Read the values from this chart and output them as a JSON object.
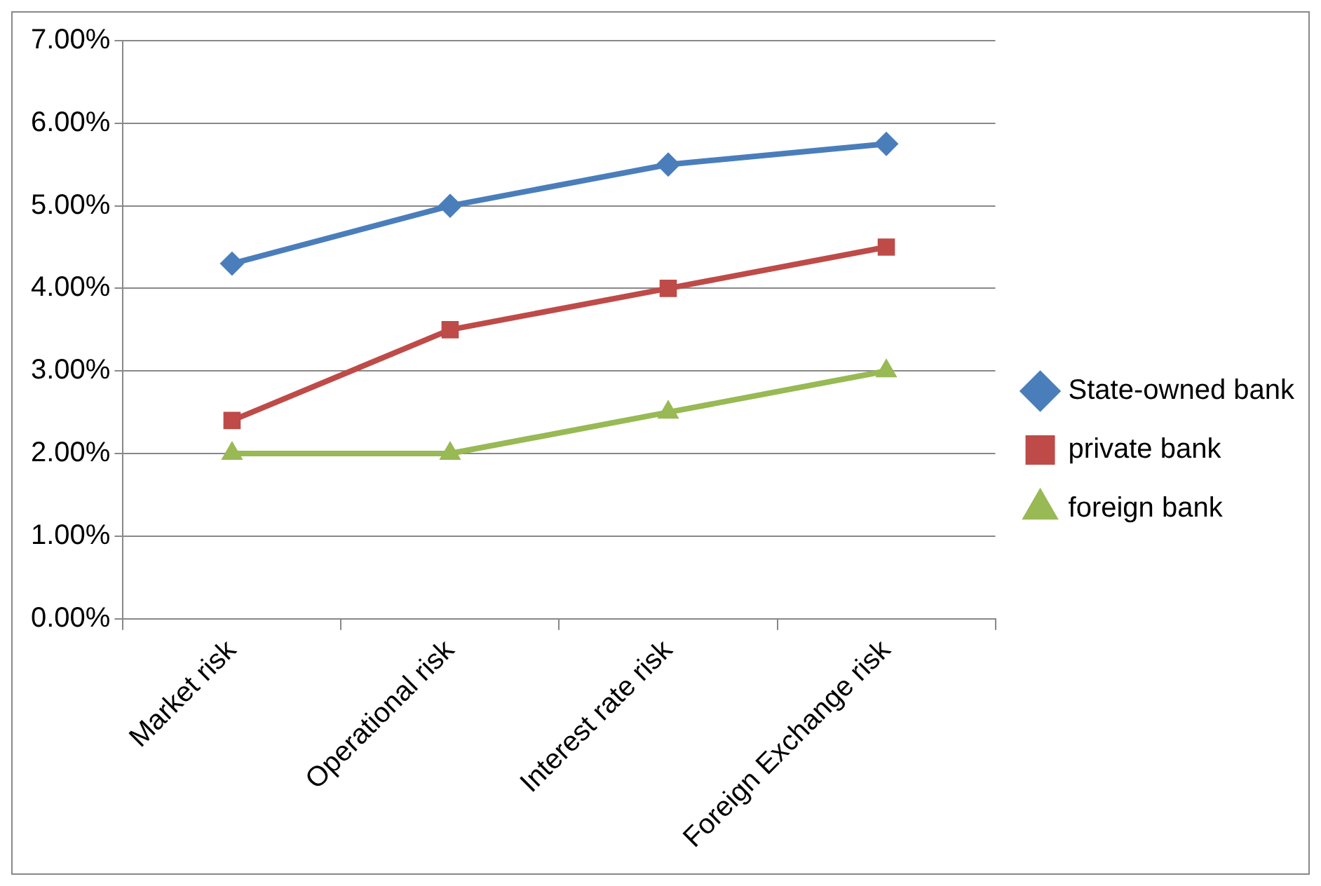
{
  "chart_data": {
    "type": "line",
    "categories": [
      "Market risk",
      "Operational risk",
      "Interest rate risk",
      "Foreign Exchange risk"
    ],
    "series": [
      {
        "name": "State-owned bank",
        "color": "#4a7ebb",
        "marker": "diamond",
        "values": [
          4.3,
          5.0,
          5.5,
          5.75
        ]
      },
      {
        "name": "private bank",
        "color": "#be4b48",
        "marker": "square",
        "values": [
          2.4,
          3.5,
          4.0,
          4.5
        ]
      },
      {
        "name": "foreign bank",
        "color": "#98b954",
        "marker": "triangle",
        "values": [
          2.0,
          2.0,
          2.5,
          3.0
        ]
      }
    ],
    "ylim": [
      0,
      7
    ],
    "yticks": [
      {
        "value": 0,
        "label": "0.00%"
      },
      {
        "value": 1,
        "label": "1.00%"
      },
      {
        "value": 2,
        "label": "2.00%"
      },
      {
        "value": 3,
        "label": "3.00%"
      },
      {
        "value": 4,
        "label": "4.00%"
      },
      {
        "value": 5,
        "label": "5.00%"
      },
      {
        "value": 6,
        "label": "6.00%"
      },
      {
        "value": 7,
        "label": "7.00%"
      }
    ],
    "grid": "y",
    "legend": "right",
    "line_style": "solid"
  }
}
